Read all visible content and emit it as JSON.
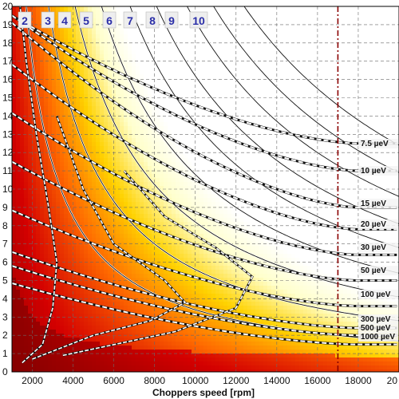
{
  "chart_data": {
    "type": "heatmap",
    "xlabel": "Choppers speed [rpm]",
    "ylabel": "",
    "xlim": [
      1000,
      20000
    ],
    "ylim": [
      0,
      20
    ],
    "x_ticks": [
      "2000",
      "4000",
      "6000",
      "8000",
      "10000",
      "12000",
      "14000",
      "16000",
      "18000",
      "20"
    ],
    "y_ticks": [
      "0",
      "1",
      "2",
      "3",
      "4",
      "5",
      "6",
      "7",
      "8",
      "9",
      "10",
      "11",
      "12",
      "13",
      "14",
      "15",
      "16",
      "17",
      "18",
      "19",
      "20"
    ],
    "grid": true,
    "colormap": [
      "#000000",
      "#7a0000",
      "#d40000",
      "#ff6a00",
      "#ffd200",
      "#ffffcc",
      "#ffffff"
    ],
    "vertical_marker": {
      "x": 17000,
      "color": "#8b0000",
      "style": "dash-dot"
    },
    "order_labels": [
      "2",
      "3",
      "4",
      "5",
      "6",
      "7",
      "8",
      "9",
      "10"
    ],
    "order_curves": [
      {
        "name": "2",
        "x_top": 1700
      },
      {
        "name": "3",
        "x_top": 2800
      },
      {
        "name": "4",
        "x_top": 4100
      },
      {
        "name": "5",
        "x_top": 5400
      },
      {
        "name": "6",
        "x_top": 6800
      },
      {
        "name": "7",
        "x_top": 8100
      },
      {
        "name": "8",
        "x_top": 9600
      },
      {
        "name": "9",
        "x_top": 10900
      },
      {
        "name": "10",
        "x_top": 12400
      }
    ],
    "resolution_labels": [
      "7.5 µeV",
      "10 µeV",
      "15 µeV",
      "20 µeV",
      "30 µeV",
      "50 µeV",
      "100 µeV",
      "300 µeV",
      "500 µeV",
      "1000 µeV"
    ],
    "resolution_curves": [
      {
        "name": "7.5 µeV",
        "y_at_18000": 12.5
      },
      {
        "name": "10 µeV",
        "y_at_18000": 11.0
      },
      {
        "name": "15 µeV",
        "y_at_18000": 9.0
      },
      {
        "name": "20 µeV",
        "y_at_18000": 7.8
      },
      {
        "name": "30 µeV",
        "y_at_18000": 6.4
      },
      {
        "name": "50 µeV",
        "y_at_18000": 5.0
      },
      {
        "name": "100 µeV",
        "y_at_18000": 3.6
      },
      {
        "name": "300 µeV",
        "y_at_18000": 2.4
      },
      {
        "name": "500 µeV",
        "y_at_18000": 2.0
      },
      {
        "name": "1000 µeV",
        "y_at_18000": 1.5
      }
    ]
  }
}
